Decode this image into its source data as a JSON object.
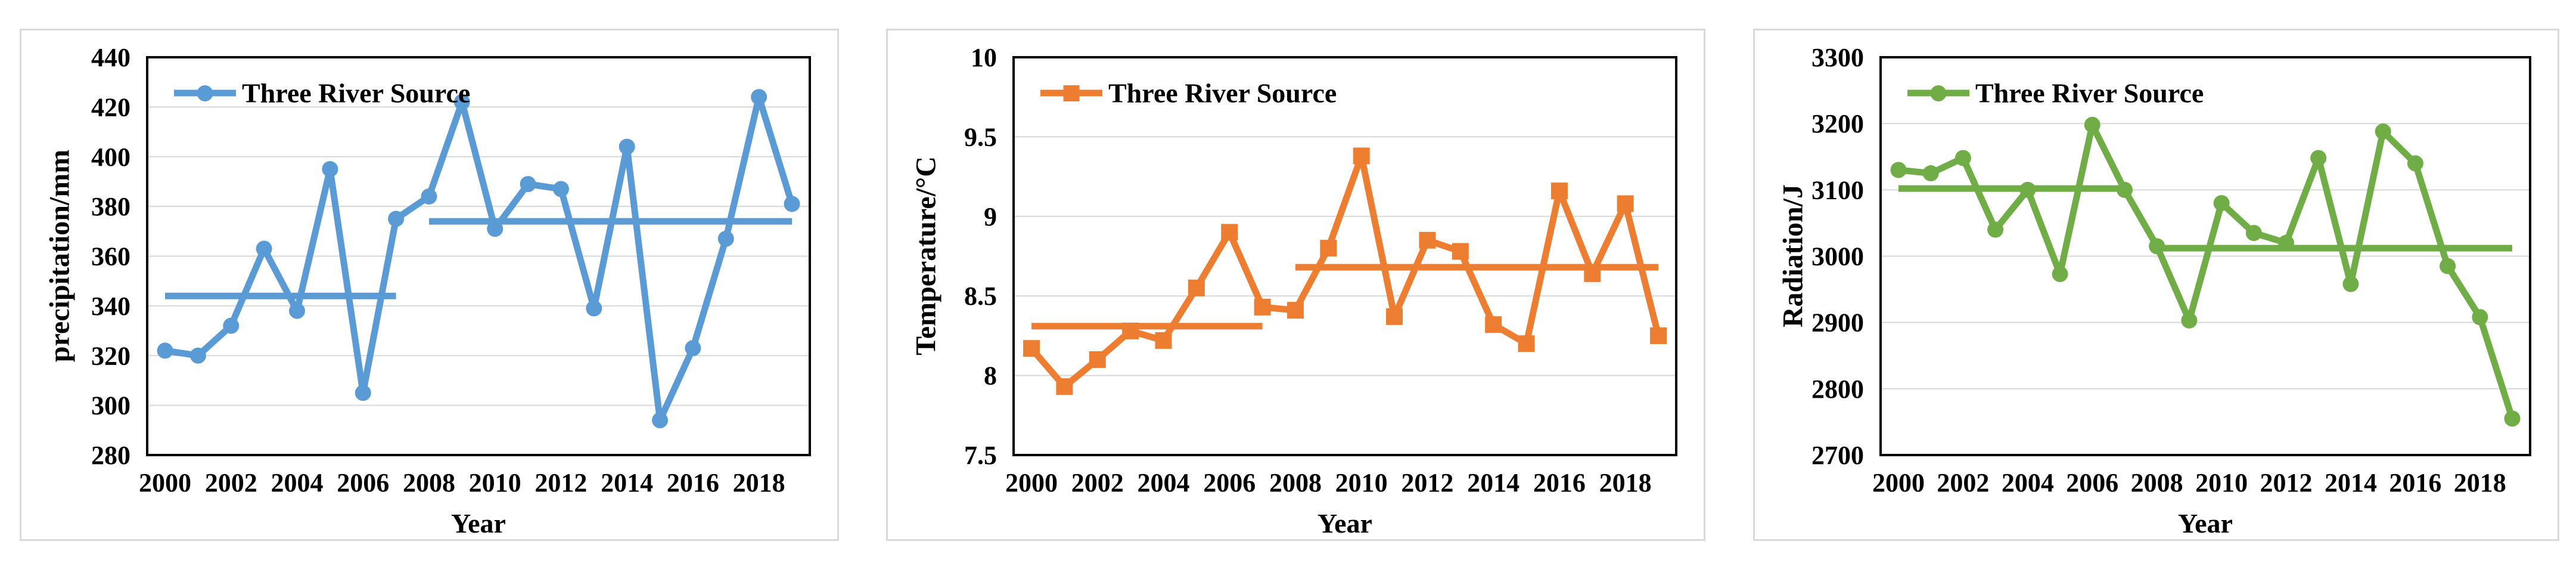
{
  "styles": {
    "panel_border_color": "#d9d9d9",
    "plot_border_color": "#000000",
    "gridline_color": "#d8d8d8",
    "text_color": "#000000",
    "precipitation_color": "#5B9BD5",
    "temperature_color": "#ED7D31",
    "radiation_color": "#70AD47"
  },
  "chart_data": [
    {
      "type": "line",
      "title": "",
      "xlabel": "Year",
      "ylabel": "precipitation/mm",
      "legend_position": "top-left",
      "grid": "horizontal",
      "x": [
        2000,
        2001,
        2002,
        2003,
        2004,
        2005,
        2006,
        2007,
        2008,
        2009,
        2010,
        2011,
        2012,
        2013,
        2014,
        2015,
        2016,
        2017,
        2018,
        2019
      ],
      "x_tick_labels": [
        "2000",
        "2002",
        "2004",
        "2006",
        "2008",
        "2010",
        "2012",
        "2014",
        "2016",
        "2018"
      ],
      "ylim": [
        280,
        440
      ],
      "y_ticks": [
        280,
        300,
        320,
        340,
        360,
        380,
        400,
        420,
        440
      ],
      "y_tick_labels": [
        "280",
        "300",
        "320",
        "340",
        "360",
        "380",
        "400",
        "420",
        "440"
      ],
      "series": [
        {
          "name": "Three River Source",
          "color": "#5B9BD5",
          "marker": "circle",
          "values": [
            322,
            320,
            332,
            363,
            338,
            395,
            305,
            375,
            384,
            422,
            371,
            389,
            387,
            339,
            404,
            294,
            323,
            367,
            424,
            381
          ]
        }
      ],
      "mean_lines": [
        {
          "from_x": 2000,
          "to_x": 2007,
          "value": 344
        },
        {
          "from_x": 2008,
          "to_x": 2019,
          "value": 374
        }
      ]
    },
    {
      "type": "line",
      "title": "",
      "xlabel": "Year",
      "ylabel": "Temperature/°C",
      "legend_position": "top-left",
      "grid": "horizontal",
      "x": [
        2000,
        2001,
        2002,
        2003,
        2004,
        2005,
        2006,
        2007,
        2008,
        2009,
        2010,
        2011,
        2012,
        2013,
        2014,
        2015,
        2016,
        2017,
        2018,
        2019
      ],
      "x_tick_labels": [
        "2000",
        "2002",
        "2004",
        "2006",
        "2008",
        "2010",
        "2012",
        "2014",
        "2016",
        "2018"
      ],
      "ylim": [
        7.5,
        10
      ],
      "y_ticks": [
        7.5,
        8,
        8.5,
        9,
        9.5,
        10
      ],
      "y_tick_labels": [
        "7.5",
        "8",
        "8.5",
        "9",
        "9.5",
        "10"
      ],
      "series": [
        {
          "name": "Three River Source",
          "color": "#ED7D31",
          "marker": "square",
          "values": [
            8.17,
            7.93,
            8.1,
            8.28,
            8.22,
            8.55,
            8.9,
            8.43,
            8.41,
            8.8,
            9.38,
            8.37,
            8.85,
            8.78,
            8.32,
            8.2,
            9.16,
            8.64,
            9.08,
            8.25
          ]
        }
      ],
      "mean_lines": [
        {
          "from_x": 2000,
          "to_x": 2007,
          "value": 8.31
        },
        {
          "from_x": 2008,
          "to_x": 2019,
          "value": 8.68
        }
      ]
    },
    {
      "type": "line",
      "title": "",
      "xlabel": "Year",
      "ylabel": "Radiation/J",
      "legend_position": "top-left",
      "grid": "horizontal",
      "x": [
        2000,
        2001,
        2002,
        2003,
        2004,
        2005,
        2006,
        2007,
        2008,
        2009,
        2010,
        2011,
        2012,
        2013,
        2014,
        2015,
        2016,
        2017,
        2018,
        2019
      ],
      "x_tick_labels": [
        "2000",
        "2002",
        "2004",
        "2006",
        "2008",
        "2010",
        "2012",
        "2014",
        "2016",
        "2018"
      ],
      "ylim": [
        2700,
        3300
      ],
      "y_ticks": [
        2700,
        2800,
        2900,
        3000,
        3100,
        3200,
        3300
      ],
      "y_tick_labels": [
        "2700",
        "2800",
        "2900",
        "3000",
        "3100",
        "3200",
        "3300"
      ],
      "series": [
        {
          "name": "Three River Source",
          "color": "#70AD47",
          "marker": "circle",
          "values": [
            3130,
            3125,
            3148,
            3040,
            3100,
            2973,
            3198,
            3100,
            3015,
            2903,
            3080,
            3035,
            3020,
            3148,
            2958,
            3188,
            3140,
            2985,
            2908,
            2755
          ]
        }
      ],
      "mean_lines": [
        {
          "from_x": 2000,
          "to_x": 2007,
          "value": 3102
        },
        {
          "from_x": 2008,
          "to_x": 2019,
          "value": 3012
        }
      ]
    }
  ]
}
